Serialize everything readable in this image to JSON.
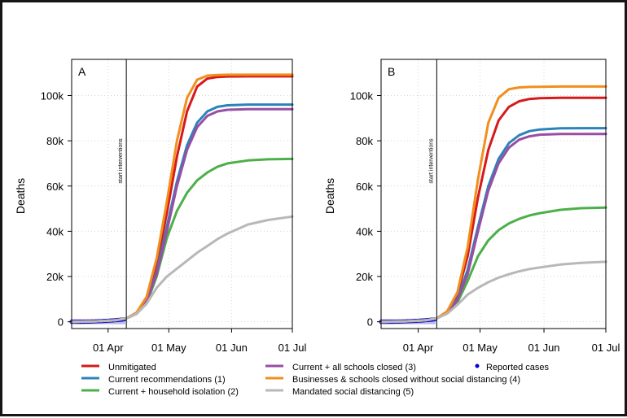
{
  "chart_data": [
    {
      "type": "line",
      "panel_label": "A",
      "ylabel": "Deaths",
      "xlabel": "",
      "x_unit": "days since 01 Mar",
      "xlim": [
        13,
        122
      ],
      "ylim": [
        -3000,
        116000
      ],
      "x_ticks": [
        {
          "value": 31,
          "label": "01 Apr"
        },
        {
          "value": 61,
          "label": "01 May"
        },
        {
          "value": 92,
          "label": "01 Jun"
        },
        {
          "value": 122,
          "label": "01 Jul"
        }
      ],
      "y_ticks": [
        {
          "value": 0,
          "label": "0"
        },
        {
          "value": 20000,
          "label": "20k"
        },
        {
          "value": 40000,
          "label": "40k"
        },
        {
          "value": 60000,
          "label": "60k"
        },
        {
          "value": 80000,
          "label": "80k"
        },
        {
          "value": 100000,
          "label": "100k"
        }
      ],
      "vline": {
        "x": 40,
        "label": "start interventions"
      },
      "reported_cases": {
        "x": [
          13,
          14,
          15,
          16,
          17,
          18,
          19,
          20,
          21,
          22,
          23,
          24,
          25,
          26,
          27,
          28,
          29,
          30,
          31,
          32,
          33,
          34,
          35,
          36,
          37,
          38,
          39
        ],
        "y": [
          0,
          0,
          5,
          10,
          20,
          35,
          50,
          70,
          90,
          110,
          140,
          170,
          210,
          250,
          290,
          330,
          380,
          430,
          480,
          540,
          600,
          670,
          740,
          820,
          900,
          990,
          1100
        ]
      },
      "series": [
        {
          "name": "Unmitigated",
          "color": "#d7191c",
          "x": [
            13,
            25,
            35,
            40,
            45,
            50,
            55,
            60,
            65,
            70,
            75,
            80,
            85,
            90,
            100,
            110,
            122
          ],
          "y": [
            0,
            200,
            700,
            1500,
            4000,
            10000,
            25000,
            48000,
            73000,
            93000,
            104000,
            107500,
            108200,
            108400,
            108500,
            108500,
            108500
          ]
        },
        {
          "name": "Current recommendations (1)",
          "color": "#2b83ba",
          "x": [
            13,
            25,
            35,
            40,
            45,
            50,
            55,
            60,
            65,
            70,
            75,
            80,
            85,
            90,
            100,
            110,
            122
          ],
          "y": [
            0,
            200,
            700,
            1500,
            3500,
            9000,
            22000,
            42000,
            62000,
            78000,
            88000,
            93000,
            95000,
            95700,
            96000,
            96000,
            96000
          ]
        },
        {
          "name": "Current + household isolation (2)",
          "color": "#4daf4a",
          "x": [
            13,
            25,
            35,
            40,
            45,
            50,
            55,
            60,
            65,
            70,
            75,
            80,
            85,
            90,
            100,
            110,
            122
          ],
          "y": [
            0,
            200,
            700,
            1500,
            3500,
            8000,
            20000,
            37000,
            49000,
            57000,
            62500,
            66000,
            68500,
            70000,
            71300,
            71800,
            72000
          ]
        },
        {
          "name": "Current + all schools closed (3)",
          "color": "#984ea3",
          "x": [
            13,
            25,
            35,
            40,
            45,
            50,
            55,
            60,
            65,
            70,
            75,
            80,
            85,
            90,
            100,
            110,
            122
          ],
          "y": [
            0,
            200,
            700,
            1500,
            3500,
            9000,
            21000,
            40000,
            60000,
            76000,
            86000,
            91000,
            93000,
            93700,
            94000,
            94000,
            94000
          ]
        },
        {
          "name": "Businesses & schools closed without social distancing (4)",
          "color": "#f28e1c",
          "x": [
            13,
            25,
            35,
            40,
            45,
            50,
            55,
            60,
            65,
            70,
            75,
            80,
            85,
            90,
            100,
            110,
            122
          ],
          "y": [
            0,
            200,
            700,
            1500,
            4000,
            11000,
            28000,
            53000,
            80000,
            99000,
            107000,
            108800,
            109100,
            109200,
            109200,
            109200,
            109200
          ]
        },
        {
          "name": "Mandated social distancing (5)",
          "color": "#b8b8b8",
          "x": [
            13,
            25,
            35,
            40,
            45,
            50,
            55,
            60,
            65,
            70,
            75,
            80,
            85,
            90,
            100,
            110,
            122
          ],
          "y": [
            0,
            200,
            700,
            1500,
            3500,
            8000,
            15000,
            20000,
            23500,
            27000,
            30500,
            33500,
            36500,
            39000,
            43000,
            45000,
            46500
          ]
        }
      ]
    },
    {
      "type": "line",
      "panel_label": "B",
      "ylabel": "Deaths",
      "xlabel": "",
      "x_unit": "days since 01 Mar",
      "xlim": [
        13,
        122
      ],
      "ylim": [
        -3000,
        116000
      ],
      "x_ticks": [
        {
          "value": 31,
          "label": "01 Apr"
        },
        {
          "value": 61,
          "label": "01 May"
        },
        {
          "value": 92,
          "label": "01 Jun"
        },
        {
          "value": 122,
          "label": "01 Jul"
        }
      ],
      "y_ticks": [
        {
          "value": 0,
          "label": "0"
        },
        {
          "value": 20000,
          "label": "20k"
        },
        {
          "value": 40000,
          "label": "40k"
        },
        {
          "value": 60000,
          "label": "60k"
        },
        {
          "value": 80000,
          "label": "80k"
        },
        {
          "value": 100000,
          "label": "100k"
        }
      ],
      "vline": {
        "x": 40,
        "label": "start interventions"
      },
      "reported_cases": {
        "x": [
          13,
          14,
          15,
          16,
          17,
          18,
          19,
          20,
          21,
          22,
          23,
          24,
          25,
          26,
          27,
          28,
          29,
          30,
          31,
          32,
          33,
          34,
          35,
          36,
          37,
          38,
          39
        ],
        "y": [
          0,
          0,
          5,
          10,
          20,
          35,
          50,
          70,
          90,
          110,
          140,
          170,
          210,
          250,
          290,
          330,
          380,
          430,
          480,
          540,
          600,
          670,
          740,
          820,
          900,
          990,
          1100
        ]
      },
      "series": [
        {
          "name": "Unmitigated",
          "color": "#d7191c",
          "x": [
            13,
            25,
            35,
            40,
            45,
            50,
            55,
            60,
            65,
            70,
            75,
            80,
            85,
            90,
            100,
            110,
            122
          ],
          "y": [
            0,
            200,
            700,
            1500,
            4500,
            12000,
            29000,
            55000,
            76000,
            89000,
            95000,
            97500,
            98500,
            98800,
            99000,
            99000,
            99000
          ]
        },
        {
          "name": "Current recommendations (1)",
          "color": "#2b83ba",
          "x": [
            13,
            25,
            35,
            40,
            45,
            50,
            55,
            60,
            65,
            70,
            75,
            80,
            85,
            90,
            100,
            110,
            122
          ],
          "y": [
            0,
            200,
            700,
            1500,
            4000,
            10000,
            23000,
            42000,
            60000,
            72000,
            79000,
            82500,
            84300,
            85000,
            85500,
            85600,
            85600
          ]
        },
        {
          "name": "Current + household isolation (2)",
          "color": "#4daf4a",
          "x": [
            13,
            25,
            35,
            40,
            45,
            50,
            55,
            60,
            65,
            70,
            75,
            80,
            85,
            90,
            100,
            110,
            122
          ],
          "y": [
            0,
            200,
            700,
            1500,
            3800,
            8500,
            18000,
            29000,
            36000,
            40500,
            43500,
            45500,
            47000,
            48000,
            49500,
            50200,
            50500
          ]
        },
        {
          "name": "Current + all schools closed (3)",
          "color": "#984ea3",
          "x": [
            13,
            25,
            35,
            40,
            45,
            50,
            55,
            60,
            65,
            70,
            75,
            80,
            85,
            90,
            100,
            110,
            122
          ],
          "y": [
            0,
            200,
            700,
            1500,
            3900,
            9500,
            21000,
            40000,
            58000,
            70000,
            77000,
            80500,
            82000,
            82700,
            83000,
            83000,
            83000
          ]
        },
        {
          "name": "Businesses & schools closed without social distancing (4)",
          "color": "#f28e1c",
          "x": [
            13,
            25,
            35,
            40,
            45,
            50,
            55,
            60,
            65,
            70,
            75,
            80,
            85,
            90,
            100,
            110,
            122
          ],
          "y": [
            0,
            200,
            700,
            1500,
            4500,
            13000,
            33000,
            63000,
            88000,
            99000,
            102800,
            103600,
            103800,
            103900,
            104000,
            104000,
            104000
          ]
        },
        {
          "name": "Mandated social distancing (5)",
          "color": "#b8b8b8",
          "x": [
            13,
            25,
            35,
            40,
            45,
            50,
            55,
            60,
            65,
            70,
            75,
            80,
            85,
            90,
            100,
            110,
            122
          ],
          "y": [
            0,
            200,
            700,
            1500,
            3500,
            7500,
            12000,
            15000,
            17500,
            19500,
            21000,
            22300,
            23300,
            24000,
            25300,
            26000,
            26500
          ]
        }
      ]
    }
  ],
  "legend": [
    {
      "name": "Unmitigated",
      "color": "#d7191c",
      "marker": "line"
    },
    {
      "name": "Current recommendations (1)",
      "color": "#2b83ba",
      "marker": "line"
    },
    {
      "name": "Current + household isolation (2)",
      "color": "#4daf4a",
      "marker": "line"
    },
    {
      "name": "Current + all schools closed (3)",
      "color": "#984ea3",
      "marker": "line"
    },
    {
      "name": "Businesses & schools closed without social distancing (4)",
      "color": "#f28e1c",
      "marker": "line"
    },
    {
      "name": "Mandated social distancing (5)",
      "color": "#b8b8b8",
      "marker": "line"
    },
    {
      "name": "Reported cases",
      "color": "#0000cc",
      "marker": "dot"
    }
  ],
  "reported_cases_style": {
    "fill": "#0000cc",
    "band": "#b9b9f2"
  },
  "colors": {
    "frame": "#161616",
    "grid": "#d6d6d6",
    "axis": "#000000"
  }
}
